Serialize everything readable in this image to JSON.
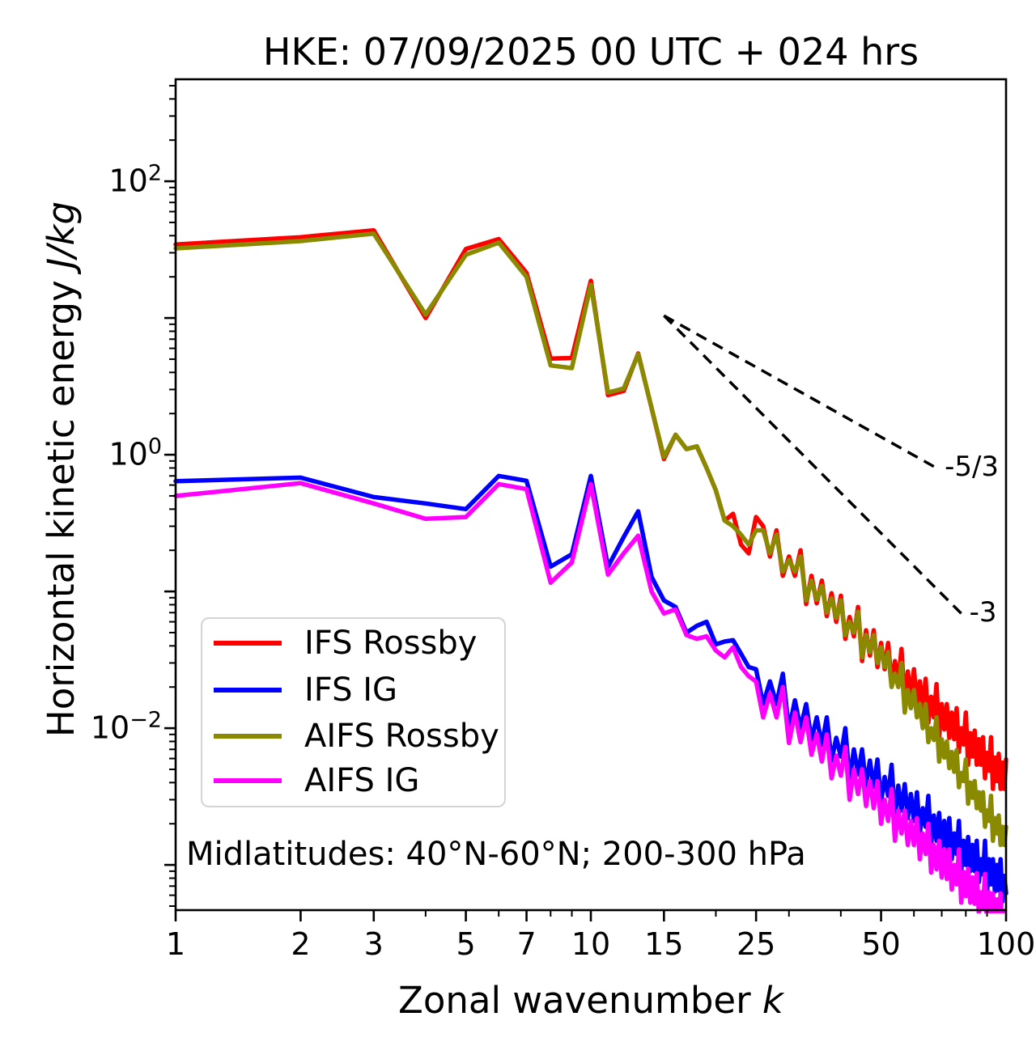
{
  "figure": {
    "title": "HKE: 07/09/2025 00 UTC + 024 hrs",
    "xlabel": {
      "text": "Zonal wavenumber ",
      "italic": "k"
    },
    "ylabel": {
      "text": "Horizontal kinetic energy ",
      "italic": "J/kg"
    },
    "annotation": "Midlatitudes: 40°N-60°N; 200-300 hPa"
  },
  "legend": {
    "items": [
      {
        "label": "IFS Rossby",
        "color": "#ff0000"
      },
      {
        "label": "IFS IG",
        "color": "#0000ff"
      },
      {
        "label": "AIFS Rossby",
        "color": "#8a8a00"
      },
      {
        "label": "AIFS IG",
        "color": "#ff00ff"
      }
    ]
  },
  "chart_data": {
    "type": "line",
    "title": "HKE: 07/09/2025 00 UTC + 024 hrs",
    "xlabel": "Zonal wavenumber k",
    "ylabel": "Horizontal kinetic energy J/kg",
    "x_scale": "log",
    "y_scale": "log",
    "xlim": [
      1,
      100
    ],
    "ylim": [
      0.000467,
      557
    ],
    "grid": false,
    "legend_position": "lower-left",
    "xticks": {
      "major": [
        1,
        2,
        3,
        5,
        7,
        10,
        15,
        25,
        50,
        100
      ],
      "major_labels": [
        "1",
        "2",
        "3",
        "5",
        "7",
        "10",
        "15",
        "25",
        "50",
        "100"
      ],
      "minor": [
        4,
        6,
        8,
        9,
        20,
        30,
        40,
        60,
        70,
        80,
        90
      ]
    },
    "yticks": {
      "labeled": [
        {
          "value": 100,
          "base": "10",
          "exp": "2"
        },
        {
          "value": 1,
          "base": "10",
          "exp": "0"
        },
        {
          "value": 0.01,
          "base": "10",
          "exp": "−2"
        }
      ],
      "decades": [
        100,
        10,
        1,
        0.1,
        0.01,
        0.001
      ]
    },
    "x": [
      1,
      2,
      3,
      4,
      5,
      6,
      7,
      8,
      9,
      10,
      11,
      12,
      13,
      14,
      15,
      16,
      17,
      18,
      19,
      20,
      21,
      22,
      23,
      24,
      25,
      26,
      27,
      28,
      29,
      30,
      31,
      32,
      33,
      34,
      35,
      36,
      37,
      38,
      39,
      40,
      41,
      42,
      43,
      44,
      45,
      46,
      47,
      48,
      49,
      50,
      51,
      52,
      53,
      54,
      55,
      56,
      57,
      58,
      59,
      60,
      61,
      62,
      63,
      64,
      65,
      66,
      67,
      68,
      69,
      70,
      71,
      72,
      73,
      74,
      75,
      76,
      77,
      78,
      79,
      80,
      81,
      82,
      83,
      84,
      85,
      86,
      87,
      88,
      89,
      90,
      91,
      92,
      93,
      94,
      95,
      96,
      97,
      98,
      99,
      100
    ],
    "series": [
      {
        "name": "IFS Rossby",
        "color": "#ff0000",
        "values": [
          34.5,
          39,
          43.7,
          10.0,
          32,
          37.8,
          21.4,
          5.05,
          5.1,
          18.7,
          2.73,
          2.93,
          5.5,
          2.2,
          0.93,
          1.4,
          1.1,
          1.15,
          0.8,
          0.55,
          0.33,
          0.37,
          0.22,
          0.19,
          0.35,
          0.3,
          0.18,
          0.28,
          0.13,
          0.18,
          0.13,
          0.2,
          0.081,
          0.13,
          0.082,
          0.12,
          0.066,
          0.097,
          0.06,
          0.093,
          0.045,
          0.065,
          0.047,
          0.077,
          0.031,
          0.052,
          0.034,
          0.052,
          0.028,
          0.042,
          0.027,
          0.042,
          0.021,
          0.031,
          0.022,
          0.038,
          0.015,
          0.026,
          0.017,
          0.027,
          0.015,
          0.022,
          0.014,
          0.023,
          0.011,
          0.017,
          0.012,
          0.021,
          0.0087,
          0.015,
          0.0098,
          0.015,
          0.0085,
          0.013,
          0.0083,
          0.014,
          0.0067,
          0.01,
          0.0076,
          0.013,
          0.0054,
          0.0092,
          0.0062,
          0.0096,
          0.0054,
          0.0083,
          0.0054,
          0.0086,
          0.0043,
          0.0066,
          0.0049,
          0.0086,
          0.0036,
          0.0061,
          0.0041,
          0.0065,
          0.0036,
          0.0056,
          0.0036,
          0.0059
        ]
      },
      {
        "name": "IFS IG",
        "color": "#0000ff",
        "values": [
          0.64,
          0.68,
          0.49,
          0.44,
          0.4,
          0.7,
          0.645,
          0.152,
          0.187,
          0.7,
          0.152,
          0.25,
          0.386,
          0.128,
          0.086,
          0.077,
          0.05,
          0.056,
          0.06,
          0.041,
          0.043,
          0.044,
          0.035,
          0.028,
          0.027,
          0.015,
          0.022,
          0.015,
          0.025,
          0.0097,
          0.016,
          0.01,
          0.015,
          0.0082,
          0.012,
          0.0075,
          0.012,
          0.0058,
          0.0085,
          0.0062,
          0.01,
          0.0042,
          0.007,
          0.0046,
          0.007,
          0.0038,
          0.0058,
          0.0037,
          0.0059,
          0.0029,
          0.0044,
          0.0032,
          0.0054,
          0.0022,
          0.0038,
          0.0025,
          0.0039,
          0.0022,
          0.0033,
          0.0021,
          0.0034,
          0.0017,
          0.0026,
          0.0019,
          0.0032,
          0.0014,
          0.0023,
          0.0015,
          0.0024,
          0.0013,
          0.0021,
          0.0013,
          0.0022,
          0.0011,
          0.0017,
          0.0012,
          0.0021,
          0.00089,
          0.0015,
          0.001,
          0.0016,
          0.0009,
          0.0014,
          0.0009,
          0.0015,
          0.00075,
          0.0011,
          0.00085,
          0.0015,
          0.00062,
          0.0011,
          0.00072,
          0.0011,
          0.00064,
          0.001,
          0.00065,
          0.0011,
          0.00054,
          0.00083,
          0.00062
        ]
      },
      {
        "name": "AIFS Rossby",
        "color": "#8a8a00",
        "values": [
          32.3,
          36.5,
          41.4,
          10.6,
          29,
          35.6,
          20,
          4.5,
          4.3,
          17.5,
          2.85,
          3.05,
          5.43,
          2.2,
          0.96,
          1.4,
          1.1,
          1.15,
          0.8,
          0.55,
          0.33,
          0.3,
          0.26,
          0.22,
          0.28,
          0.28,
          0.19,
          0.26,
          0.14,
          0.17,
          0.14,
          0.18,
          0.086,
          0.12,
          0.087,
          0.11,
          0.07,
          0.089,
          0.064,
          0.086,
          0.048,
          0.06,
          0.05,
          0.071,
          0.033,
          0.048,
          0.036,
          0.048,
          0.03,
          0.039,
          0.028,
          0.036,
          0.02,
          0.025,
          0.02,
          0.03,
          0.013,
          0.019,
          0.014,
          0.019,
          0.012,
          0.015,
          0.01,
          0.015,
          0.0079,
          0.01,
          0.0082,
          0.012,
          0.0057,
          0.0083,
          0.0061,
          0.008,
          0.0051,
          0.0067,
          0.0048,
          0.0069,
          0.0037,
          0.0047,
          0.0041,
          0.0059,
          0.0028,
          0.004,
          0.0031,
          0.0041,
          0.0026,
          0.0034,
          0.0025,
          0.0034,
          0.0019,
          0.0025,
          0.0021,
          0.0032,
          0.0015,
          0.0022,
          0.0017,
          0.0023,
          0.0014,
          0.0019,
          0.0014,
          0.0019
        ]
      },
      {
        "name": "AIFS IG",
        "color": "#ff00ff",
        "values": [
          0.5,
          0.62,
          0.44,
          0.34,
          0.35,
          0.61,
          0.56,
          0.116,
          0.163,
          0.61,
          0.133,
          0.19,
          0.256,
          0.1,
          0.069,
          0.074,
          0.048,
          0.045,
          0.047,
          0.037,
          0.033,
          0.039,
          0.028,
          0.024,
          0.022,
          0.012,
          0.018,
          0.012,
          0.02,
          0.0078,
          0.013,
          0.0079,
          0.012,
          0.0064,
          0.0091,
          0.0057,
          0.009,
          0.0043,
          0.0063,
          0.0045,
          0.0073,
          0.003,
          0.005,
          0.0033,
          0.005,
          0.0027,
          0.0041,
          0.0026,
          0.0041,
          0.002,
          0.003,
          0.0021,
          0.0036,
          0.0015,
          0.0025,
          0.0017,
          0.0025,
          0.0014,
          0.0021,
          0.0014,
          0.0022,
          0.0011,
          0.0017,
          0.0012,
          0.002,
          0.00088,
          0.0014,
          0.00093,
          0.0015,
          0.00081,
          0.0013,
          0.00079,
          0.0013,
          0.00066,
          0.001,
          0.00072,
          0.0013,
          0.00053,
          0.00089,
          0.00059,
          0.00094,
          0.00053,
          0.00081,
          0.00052,
          0.00087,
          0.00044,
          0.00063,
          0.00048,
          0.00086,
          0.00035,
          0.00063,
          0.0004,
          0.00062,
          0.00036,
          0.00056,
          0.00036,
          0.00062,
          0.0003,
          0.00046,
          0.00034
        ]
      }
    ],
    "ref_lines": [
      {
        "label": "-5/3",
        "slope": -1.667,
        "x1": 15,
        "y1": 10.4,
        "x2": 68,
        "y2": 0.8
      },
      {
        "label": "-3",
        "slope": -3,
        "x1": 15,
        "y1": 10.4,
        "x2": 78,
        "y2": 0.069
      }
    ]
  }
}
